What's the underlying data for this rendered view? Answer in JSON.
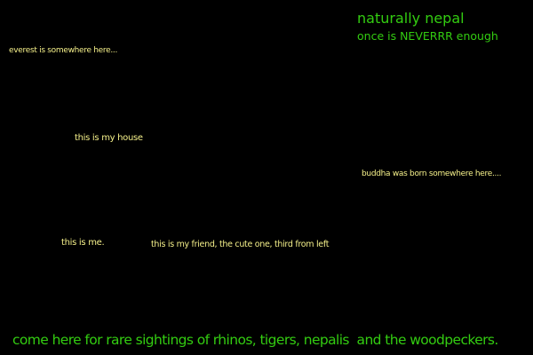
{
  "colors": {
    "background": "#000000",
    "green": "#33cc11",
    "yellow": "#f5f08a"
  },
  "header": {
    "title": "naturally nepal",
    "tagline": "once is NEVERRR enough"
  },
  "captions": {
    "everest": "everest is somewhere here...",
    "house": "this is my house",
    "buddha": "buddha was born somewhere here....",
    "me": "this is me.",
    "friend": "this is my friend, the cute one, third from left"
  },
  "footer": {
    "text": "come here for rare sightings of rhinos, tigers, nepalis  and the woodpeckers."
  }
}
